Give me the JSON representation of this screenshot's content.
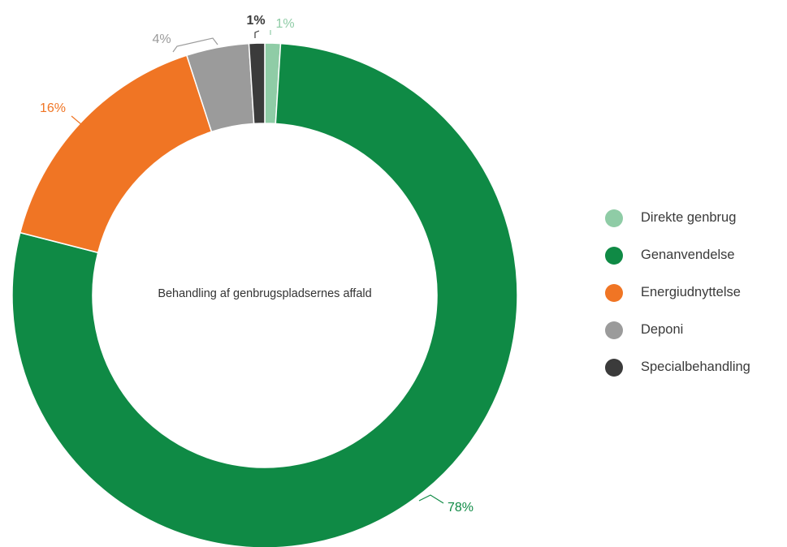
{
  "chart_data": {
    "type": "pie",
    "title": "Behandling af genbrugspladsernes affald",
    "slices": [
      {
        "name": "Direkte genbrug",
        "value": 1,
        "label": "1%",
        "color": "#8fcca6",
        "label_color": "#8fcca6"
      },
      {
        "name": "Genanvendelse",
        "value": 78,
        "label": "78%",
        "color": "#0f8a45",
        "label_color": "#0f8a45"
      },
      {
        "name": "Energiudnyttelse",
        "value": 16,
        "label": "16%",
        "color": "#f07524",
        "label_color": "#f07524"
      },
      {
        "name": "Deponi",
        "value": 4,
        "label": "4%",
        "color": "#9b9b9b",
        "label_color": "#9b9b9b"
      },
      {
        "name": "Specialbehandling",
        "value": 1,
        "label": "1%",
        "color": "#3b3b3b",
        "label_color": "#3b3b3b"
      }
    ],
    "legend_position": "right"
  }
}
